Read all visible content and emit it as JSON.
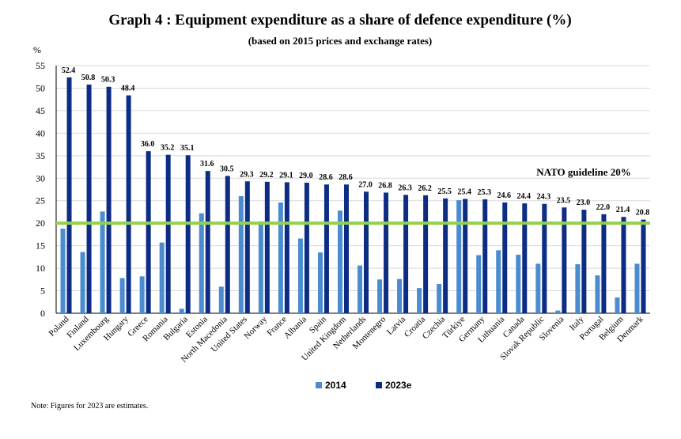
{
  "chart_data": {
    "type": "bar",
    "title": "Graph 4 : Equipment expenditure as a share of defence expenditure (%)",
    "subtitle": "(based on 2015 prices and exchange rates)",
    "ylabel": "%",
    "ylim": [
      0,
      55
    ],
    "yticks": [
      0,
      5,
      10,
      15,
      20,
      25,
      30,
      35,
      40,
      45,
      50,
      55
    ],
    "grid": true,
    "legend_position": "bottom",
    "categories": [
      "Poland",
      "Finland",
      "Luxembourg",
      "Hungary",
      "Greece",
      "Romania",
      "Bulgaria",
      "Estonia",
      "North Macedonia",
      "United States",
      "Norway",
      "France",
      "Albania",
      "Spain",
      "United Kingdom",
      "Netherlands",
      "Montenegro",
      "Latvia",
      "Croatia",
      "Czechia",
      "Türkiye",
      "Germany",
      "Lithuania",
      "Canada",
      "Slovak Republic",
      "Slovenia",
      "Italy",
      "Portugal",
      "Belgium",
      "Denmark"
    ],
    "series": [
      {
        "name": "2014",
        "color": "#4a8ccf",
        "values": [
          18.8,
          13.6,
          22.6,
          7.8,
          8.2,
          15.7,
          1.0,
          22.2,
          5.9,
          26.0,
          20.4,
          24.6,
          16.6,
          13.5,
          22.8,
          10.6,
          7.5,
          7.6,
          5.6,
          6.5,
          25.1,
          12.9,
          14.0,
          13.0,
          11.0,
          0.6,
          10.9,
          8.4,
          3.5,
          11.0
        ]
      },
      {
        "name": "2023e",
        "color": "#0c2d83",
        "values": [
          52.4,
          50.8,
          50.3,
          48.4,
          36.0,
          35.2,
          35.1,
          31.6,
          30.5,
          29.3,
          29.2,
          29.1,
          29.0,
          28.6,
          28.6,
          27.0,
          26.8,
          26.3,
          26.2,
          25.5,
          25.4,
          25.3,
          24.6,
          24.4,
          24.3,
          23.5,
          23.0,
          22.0,
          21.4,
          20.8
        ]
      }
    ],
    "data_labels": [
      "52.4",
      "50.8",
      "50.3",
      "48.4",
      "36.0",
      "35.2",
      "35.1",
      "31.6",
      "30.5",
      "29.3",
      "29.2",
      "29.1",
      "29.0",
      "28.6",
      "28.6",
      "27.0",
      "26.8",
      "26.3",
      "26.2",
      "25.5",
      "25.4",
      "25.3",
      "24.6",
      "24.4",
      "24.3",
      "23.5",
      "23.0",
      "22.0",
      "21.4",
      "20.8"
    ],
    "reference_line": {
      "value": 20,
      "label": "NATO guideline 20%",
      "color": "#92d050"
    }
  },
  "note": "Note: Figures for 2023 are estimates."
}
